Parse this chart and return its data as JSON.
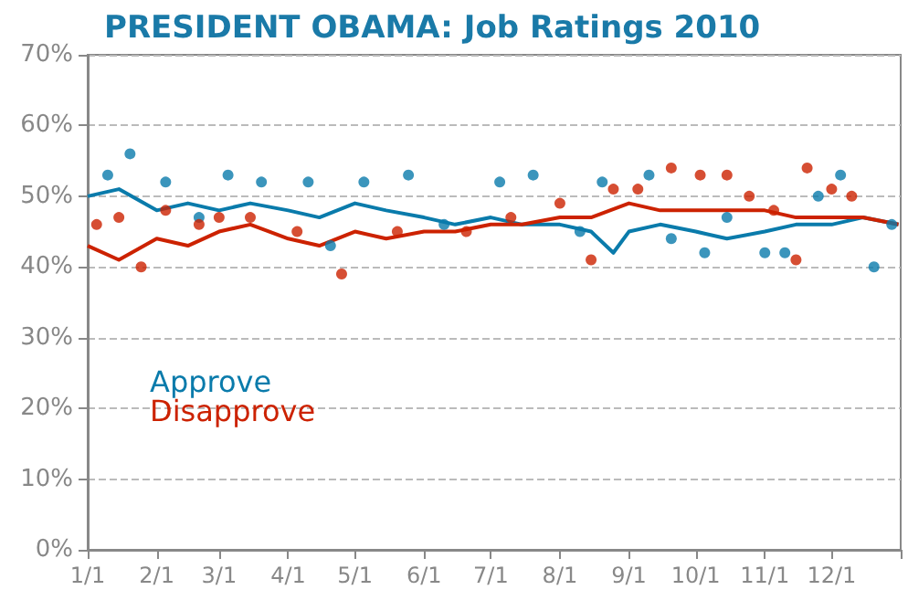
{
  "chart_data": {
    "type": "line",
    "title": "PRESIDENT OBAMA: Job Ratings 2010",
    "xlim": [
      "2010-01-01",
      "2011-01-01"
    ],
    "xticks": [
      {
        "value": "2010-01-01",
        "label": "1/1"
      },
      {
        "value": "2010-02-01",
        "label": "2/1"
      },
      {
        "value": "2010-03-01",
        "label": "3/1"
      },
      {
        "value": "2010-04-01",
        "label": "4/1"
      },
      {
        "value": "2010-05-01",
        "label": "5/1"
      },
      {
        "value": "2010-06-01",
        "label": "6/1"
      },
      {
        "value": "2010-07-01",
        "label": "7/1"
      },
      {
        "value": "2010-08-01",
        "label": "8/1"
      },
      {
        "value": "2010-09-01",
        "label": "9/1"
      },
      {
        "value": "2010-10-01",
        "label": "10/1"
      },
      {
        "value": "2010-11-01",
        "label": "11/1"
      },
      {
        "value": "2010-12-01",
        "label": "12/1"
      },
      {
        "value": "2011-01-01",
        "label": null
      }
    ],
    "ylim": [
      0,
      70
    ],
    "yticks": [
      {
        "value": 0,
        "label": "0%"
      },
      {
        "value": 10,
        "label": "10%"
      },
      {
        "value": 20,
        "label": "20%"
      },
      {
        "value": 30,
        "label": "30%"
      },
      {
        "value": 40,
        "label": "40%"
      },
      {
        "value": 50,
        "label": "50%"
      },
      {
        "value": 60,
        "label": "60%"
      },
      {
        "value": 70,
        "label": "70%"
      }
    ],
    "grid": "y",
    "legend": "bottom left",
    "line_style": "solid",
    "series": [
      {
        "name": "Approve",
        "marker": "none",
        "color": "#0a7bab",
        "x": [
          "2010-01-01",
          "2010-01-15",
          "2010-02-01",
          "2010-02-15",
          "2010-03-01",
          "2010-03-15",
          "2010-04-01",
          "2010-04-15",
          "2010-05-01",
          "2010-05-15",
          "2010-06-01",
          "2010-06-15",
          "2010-07-01",
          "2010-07-15",
          "2010-08-01",
          "2010-08-15",
          "2010-08-25",
          "2010-09-01",
          "2010-09-15",
          "2010-10-01",
          "2010-10-15",
          "2010-11-01",
          "2010-11-15",
          "2010-12-01",
          "2010-12-15",
          "2010-12-31"
        ],
        "values": [
          50,
          51,
          48,
          49,
          48,
          49,
          48,
          47,
          49,
          48,
          47,
          46,
          47,
          46,
          46,
          45,
          42,
          45,
          46,
          45,
          44,
          45,
          46,
          46,
          47,
          46
        ]
      },
      {
        "name": "Disapprove",
        "marker": "none",
        "color": "#cc2200",
        "x": [
          "2010-01-01",
          "2010-01-15",
          "2010-02-01",
          "2010-02-15",
          "2010-03-01",
          "2010-03-15",
          "2010-04-01",
          "2010-04-15",
          "2010-05-01",
          "2010-05-15",
          "2010-06-01",
          "2010-06-15",
          "2010-07-01",
          "2010-07-15",
          "2010-08-01",
          "2010-08-15",
          "2010-09-01",
          "2010-09-15",
          "2010-10-01",
          "2010-10-15",
          "2010-11-01",
          "2010-11-15",
          "2010-12-01",
          "2010-12-15",
          "2010-12-31"
        ],
        "values": [
          43,
          41,
          44,
          43,
          45,
          46,
          44,
          43,
          45,
          44,
          45,
          45,
          46,
          46,
          47,
          47,
          49,
          48,
          48,
          48,
          48,
          47,
          47,
          47,
          46
        ]
      },
      {
        "type": "scatter",
        "marker": "circle",
        "color": "#0a7bab",
        "x": [
          "2010-01-10",
          "2010-01-20",
          "2010-02-05",
          "2010-02-20",
          "2010-03-05",
          "2010-03-20",
          "2010-04-10",
          "2010-04-20",
          "2010-05-05",
          "2010-05-25",
          "2010-06-10",
          "2010-07-05",
          "2010-07-20",
          "2010-08-10",
          "2010-08-20",
          "2010-09-10",
          "2010-09-20",
          "2010-10-05",
          "2010-10-15",
          "2010-11-01",
          "2010-11-10",
          "2010-11-25",
          "2010-12-05",
          "2010-12-20",
          "2010-12-28"
        ],
        "values": [
          53,
          56,
          52,
          47,
          53,
          52,
          52,
          43,
          52,
          53,
          46,
          52,
          53,
          45,
          52,
          53,
          44,
          42,
          47,
          42,
          42,
          50,
          53,
          40,
          46
        ]
      },
      {
        "type": "scatter",
        "marker": "circle",
        "color": "#cc2200",
        "x": [
          "2010-01-05",
          "2010-01-15",
          "2010-01-25",
          "2010-02-05",
          "2010-02-20",
          "2010-03-01",
          "2010-03-15",
          "2010-04-05",
          "2010-04-25",
          "2010-05-20",
          "2010-06-20",
          "2010-07-10",
          "2010-08-01",
          "2010-08-15",
          "2010-08-25",
          "2010-09-05",
          "2010-09-20",
          "2010-10-03",
          "2010-10-15",
          "2010-10-25",
          "2010-11-05",
          "2010-11-15",
          "2010-11-20",
          "2010-12-01",
          "2010-12-10"
        ],
        "values": [
          46,
          47,
          40,
          48,
          46,
          47,
          47,
          45,
          39,
          45,
          45,
          47,
          49,
          41,
          51,
          51,
          54,
          53,
          53,
          50,
          48,
          41,
          54,
          51,
          50
        ]
      }
    ]
  }
}
